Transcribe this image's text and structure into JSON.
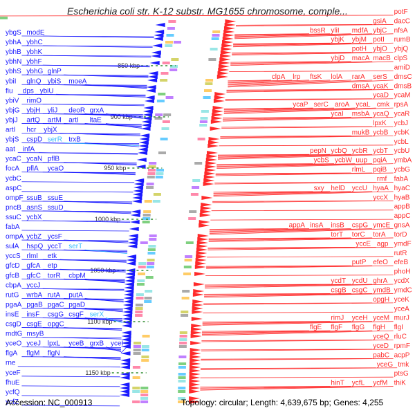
{
  "title": "Escherichia coli str. K-12 substr. MG1655 chromosome, comple...",
  "footer": {
    "accession": "Accession: NC_000913",
    "stats": "Topology: circular; Length: 4,639,675 bp; Genes: 4,255"
  },
  "colors": {
    "reverse_strand": "#1a1aff",
    "forward_strand": "#ff2a2a",
    "highlight_gene": "#33bbff",
    "backbone": "#8a8a8a",
    "tick": "#2e8b2e"
  },
  "kbp_ticks": [
    "850 kbp",
    "900 kbp",
    "950 kbp",
    "1000 kbp",
    "1050 kbp",
    "1100 kbp",
    "1150 kbp"
  ],
  "left_genes": [
    [
      "ybgS",
      "modE"
    ],
    [
      "ybhA",
      "ybhC"
    ],
    [
      "ybhB",
      "ybhK"
    ],
    [
      "ybhN",
      "ybhF"
    ],
    [
      "ybhS",
      "ybhG",
      "glnP"
    ],
    [
      "ybiI",
      "glnQ",
      "ybiS",
      "moeA"
    ],
    [
      "fiu",
      "dps",
      "ybiU"
    ],
    [
      "ybiV",
      "rimO"
    ],
    [
      "ybjG",
      "ybjH",
      "yliJ",
      "deoR",
      "grxA"
    ],
    [
      "ybjJ",
      "artQ",
      "artM",
      "artI",
      "ltaE"
    ],
    [
      "artI",
      "hcr",
      "ybjX"
    ],
    [
      "ybjS",
      "cspD",
      "serR",
      "trxB"
    ],
    [
      "aat",
      "infA"
    ],
    [
      "ycaC",
      "ycaN",
      "pflB"
    ],
    [
      "focA",
      "pflA",
      "ycaO"
    ],
    [
      "ycbC"
    ],
    [
      "aspC"
    ],
    [
      "ompF",
      "ssuB",
      "ssuE"
    ],
    [
      "pncB",
      "asnS",
      "ssuD"
    ],
    [
      "ssuC",
      "ycbX"
    ],
    [
      "fabA"
    ],
    [
      "ompA",
      "ycbZ",
      "ycsF"
    ],
    [
      "sulA",
      "hspQ",
      "yccT",
      "serT"
    ],
    [
      "yccS",
      "rlmI",
      "etk"
    ],
    [
      "gfcD",
      "gfcA",
      "etp"
    ],
    [
      "gfcB",
      "gfcC",
      "torR",
      "cbpM"
    ],
    [
      "cbpA",
      "yccJ"
    ],
    [
      "rutG",
      "wrbA",
      "rutA",
      "putA"
    ],
    [
      "pgaA",
      "pgaB",
      "pgaC",
      "pgaD"
    ],
    [
      "insE",
      "insF",
      "csgG",
      "csgF",
      "serX"
    ],
    [
      "csgD",
      "csgE",
      "opgC"
    ],
    [
      "mdtG",
      "msyB"
    ],
    [
      "yceO",
      "yceJ",
      "lpxL",
      "yceB",
      "grxB",
      "yceI"
    ],
    [
      "flgA",
      "flgM",
      "flgN"
    ],
    [
      "rne"
    ],
    [
      "yceF"
    ],
    [
      "fhuE"
    ],
    [
      "ycfQ"
    ],
    [
      "ycfZ"
    ]
  ],
  "right_genes": [
    [
      "potF"
    ],
    [
      "gsiA",
      "dacC"
    ],
    [
      "bssR",
      "yliI",
      "mdfA",
      "ybjC",
      "nfsA"
    ],
    [
      "ybjK",
      "ybjM",
      "potI",
      "rumB"
    ],
    [
      "potH",
      "ybjO",
      "ybjQ"
    ],
    [
      "ybjD",
      "macA",
      "macB",
      "clpS"
    ],
    [
      "amiD"
    ],
    [
      "clpA",
      "lrp",
      "ftsK",
      "lolA",
      "rarA",
      "serS",
      "dmsC"
    ],
    [
      "dmsA",
      "ycaK",
      "dmsB"
    ],
    [
      "ycaD",
      "ycaM"
    ],
    [
      "ycaP",
      "serC",
      "aroA",
      "ycaL",
      "cmk",
      "rpsA"
    ],
    [
      "ycaI",
      "msbA",
      "ycaQ",
      "ycaR"
    ],
    [
      "lpxK",
      "ycbJ"
    ],
    [
      "mukB",
      "ycbB",
      "ycbK"
    ],
    [
      "ycbL"
    ],
    [
      "pepN",
      "ycbQ",
      "ycbR",
      "ycbT",
      "ycbU"
    ],
    [
      "ycbS",
      "ycbW",
      "uup",
      "pqiA",
      "ymbA"
    ],
    [
      "rlmL",
      "pqiB",
      "ycbG"
    ],
    [
      "rmf",
      "fabA"
    ],
    [
      "sxy",
      "helD",
      "yccU",
      "hyaA",
      "hyaC"
    ],
    [
      "yccX",
      "hyaB"
    ],
    [
      "appB"
    ],
    [
      "appC"
    ],
    [
      "appA",
      "insA",
      "insB",
      "cspG",
      "ymcE",
      "gnsA"
    ],
    [
      "torT",
      "torC",
      "torA",
      "torD"
    ],
    [
      "yccE",
      "agp",
      "ymdF"
    ],
    [
      "rutR"
    ],
    [
      "putP",
      "efeO",
      "efeB"
    ],
    [
      "phoH"
    ],
    [
      "ycdT",
      "ycdU",
      "ghrA",
      "ycdX"
    ],
    [
      "csgB",
      "csgC",
      "ymdB",
      "ymdC"
    ],
    [
      "opgH",
      "yceK"
    ],
    [
      "yceA"
    ],
    [
      "rimJ",
      "yceH",
      "yceM",
      "murJ"
    ],
    [
      "flgE",
      "flgF",
      "flgG",
      "flgH",
      "flgI"
    ],
    [
      "yceQ",
      "rluC"
    ],
    [
      "yceD",
      "rpmF"
    ],
    [
      "pabC",
      "acpP"
    ],
    [
      "yceG",
      "tmk"
    ],
    [
      "ptsG"
    ],
    [
      "hinT",
      "ycfL",
      "ycfM",
      "thiK"
    ]
  ]
}
